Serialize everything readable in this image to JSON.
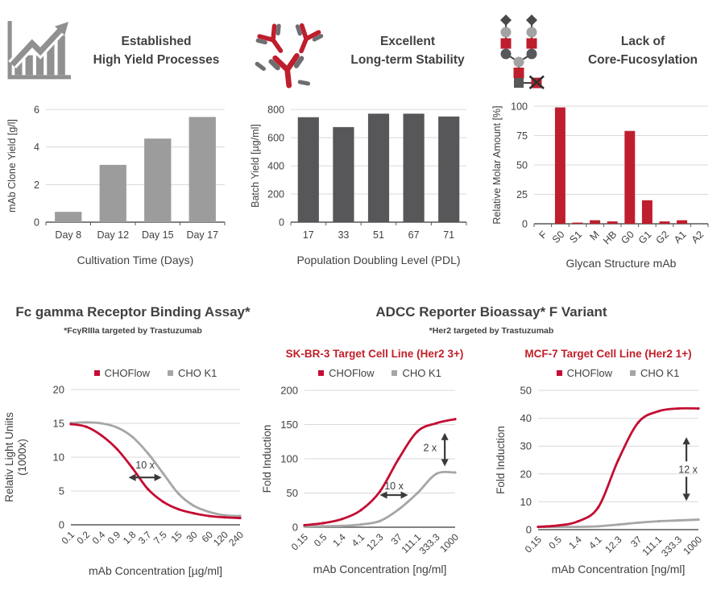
{
  "colors": {
    "brand_red": "#be1e2d",
    "curve_red": "#c40d33",
    "curve_gray": "#a6a6a6",
    "bar_light_gray": "#9c9c9c",
    "bar_dark_gray": "#57575a",
    "grid": "#d8d8d8",
    "axis": "#58585a",
    "text": "#414042",
    "accent_red_title": "#c11f28",
    "annotation": "#3a3a3a"
  },
  "top_panels": [
    {
      "title_line1": "Established",
      "title_line2": "High Yield Processes",
      "icon": "growth-chart"
    },
    {
      "title_line1": "Excellent",
      "title_line2": "Long-term Stability",
      "icon": "antibodies"
    },
    {
      "title_line1": "Lack of",
      "title_line2": "Core-Fucosylation",
      "icon": "glycan"
    }
  ],
  "assays": {
    "left": {
      "title": "Fc gamma Receptor Binding Assay*",
      "subtitle": "*FcγRIIIa targeted by Trastuzumab"
    },
    "right": {
      "title": "ADCC Reporter Bioassay* F Variant",
      "subtitle": "*Her2 targeted by Trastuzumab",
      "charts": [
        {
          "subtitle": "SK-BR-3 Target Cell Line (Her2 3+)"
        },
        {
          "subtitle": "MCF-7 Target Cell Line (Her2 1+)"
        }
      ]
    }
  },
  "chart_data": [
    {
      "type": "bar",
      "title": "Established High Yield Processes",
      "categories": [
        "Day 8",
        "Day 12",
        "Day 15",
        "Day 17"
      ],
      "values": [
        0.55,
        3.05,
        4.45,
        5.6
      ],
      "xlabel": "Cultivation Time (Days)",
      "ylabel": "mAb Clone Yield [g/l]",
      "ylim": [
        0,
        6
      ],
      "yticks": [
        0,
        2,
        4,
        6
      ],
      "bar_color": "#9c9c9c",
      "grid": true
    },
    {
      "type": "bar",
      "title": "Excellent Long-term Stability",
      "categories": [
        "17",
        "33",
        "51",
        "67",
        "71"
      ],
      "values": [
        745,
        675,
        770,
        770,
        750
      ],
      "xlabel": "Population Doubling Level (PDL)",
      "ylabel": "Batch Yield [µg/ml]",
      "ylim": [
        0,
        800
      ],
      "yticks": [
        0,
        200,
        400,
        600,
        800
      ],
      "bar_color": "#57575a",
      "grid": true
    },
    {
      "type": "bar",
      "title": "Lack of Core-Fucosylation",
      "categories": [
        "F",
        "S0",
        "S1",
        "M",
        "HB",
        "G0",
        "G1",
        "G2",
        "A1",
        "A2"
      ],
      "values": [
        0,
        99,
        1,
        3,
        2,
        79,
        20,
        2,
        3,
        0
      ],
      "xlabel": "Glycan Structure mAb",
      "ylabel": "Relative Molar Amount [%]",
      "ylim": [
        0,
        100
      ],
      "yticks": [
        0,
        25,
        50,
        75,
        100
      ],
      "bar_color": "#be1e2d",
      "rotate_xlabels": true,
      "grid": true
    },
    {
      "type": "line",
      "title": "Fc gamma Receptor Binding Assay*",
      "categories": [
        "0.1",
        "0.2",
        "0.4",
        "0.9",
        "1.8",
        "3.7",
        "7.5",
        "15",
        "30",
        "60",
        "120",
        "240"
      ],
      "xlabel": "mAb Concentration [µg/ml]",
      "ylabel_lines": [
        "Relativ Light Uniits",
        "(1000x)"
      ],
      "ylim": [
        0,
        20
      ],
      "yticks": [
        0,
        5,
        10,
        15,
        20
      ],
      "legend_position": "top",
      "series": [
        {
          "name": "CHOFlow",
          "color": "#c40d33",
          "values": [
            14.9,
            14.5,
            13.2,
            11.2,
            8.4,
            5.3,
            3.4,
            2.3,
            1.7,
            1.3,
            1.1,
            1.0
          ]
        },
        {
          "name": "CHO K1",
          "color": "#a6a6a6",
          "values": [
            15.05,
            15.15,
            15.0,
            14.4,
            13.0,
            10.6,
            7.6,
            4.6,
            2.8,
            1.9,
            1.4,
            1.3
          ]
        }
      ],
      "annotations": [
        {
          "kind": "h-arrow",
          "label": "10 x",
          "x1": 3.75,
          "x2": 5.9,
          "y": 7.0,
          "label_y": 8.8
        }
      ]
    },
    {
      "type": "line",
      "title": "SK-BR-3 Target Cell Line (Her2 3+)",
      "categories": [
        "0.15",
        "0.5",
        "1.4",
        "4.1",
        "12.3",
        "37",
        "111.1",
        "333.3",
        "1000"
      ],
      "xlabel": "mAb Concentration [ng/ml]",
      "ylabel_lines": [
        "Fold Induction"
      ],
      "ylim": [
        0,
        200
      ],
      "yticks": [
        0,
        50,
        100,
        150,
        200
      ],
      "legend_position": "top",
      "series": [
        {
          "name": "CHOFlow",
          "color": "#c40d33",
          "values": [
            3,
            6,
            12,
            25,
            52,
            100,
            140,
            152,
            158
          ]
        },
        {
          "name": "CHO K1",
          "color": "#a6a6a6",
          "values": [
            1,
            1.5,
            2,
            4,
            9,
            26,
            50,
            78,
            80
          ]
        }
      ],
      "annotations": [
        {
          "kind": "h-arrow",
          "label": "10 x",
          "x1": 4.0,
          "x2": 5.5,
          "y": 47,
          "label_y": 60
        },
        {
          "kind": "v-arrow",
          "label": "2 x",
          "x": 7.45,
          "y1": 89,
          "y2": 138,
          "label_y": 116
        }
      ]
    },
    {
      "type": "line",
      "title": "MCF-7 Target Cell Line (Her2 1+)",
      "categories": [
        "0.15",
        "0.5",
        "1.4",
        "4.1",
        "12.3",
        "37",
        "111.1",
        "333.3",
        "1000"
      ],
      "xlabel": "mAb Concentration [ng/ml]",
      "ylabel_lines": [
        "Fold Induction"
      ],
      "ylim": [
        0,
        50
      ],
      "yticks": [
        0,
        10,
        20,
        30,
        40,
        50
      ],
      "legend_position": "top",
      "series": [
        {
          "name": "CHOFlow",
          "color": "#c40d33",
          "values": [
            1,
            1.5,
            3,
            8,
            25,
            38.5,
            42.5,
            43.5,
            43.5
          ]
        },
        {
          "name": "CHO K1",
          "color": "#a6a6a6",
          "values": [
            1,
            1,
            1,
            1.2,
            1.8,
            2.5,
            3,
            3.3,
            3.6
          ]
        }
      ],
      "annotations": [
        {
          "kind": "v-split",
          "label": "12 x",
          "x": 7.4,
          "up": [
            24.5,
            33.2
          ],
          "down": [
            19,
            10.3
          ],
          "label_y": 21.6
        }
      ]
    }
  ]
}
